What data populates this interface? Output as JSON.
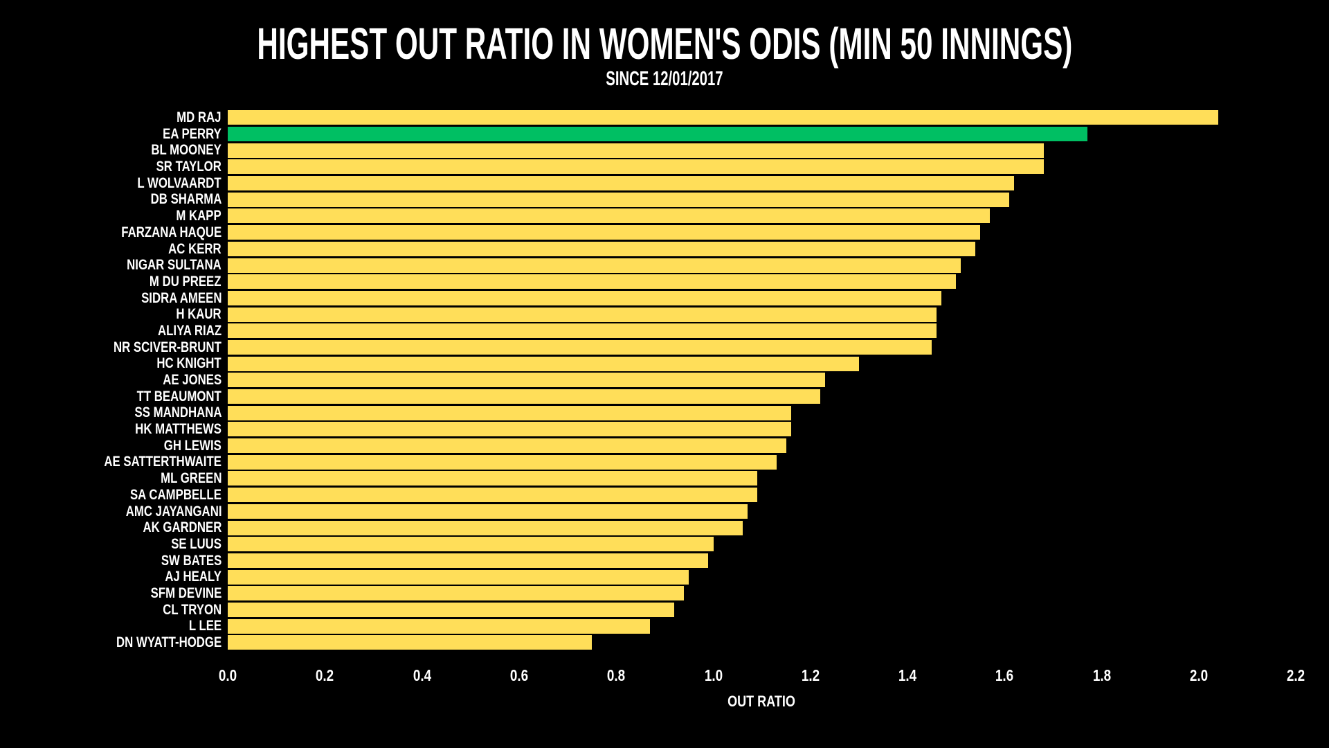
{
  "title": "HIGHEST OUT RATIO IN WOMEN'S ODIS (MIN 50 INNINGS)",
  "subtitle": "SINCE 12/01/2017",
  "colors": {
    "background": "#000000",
    "bar": "#FFDE59",
    "highlight_bar": "#00BF63",
    "text": "#FFFFFF"
  },
  "chart_data": {
    "type": "bar",
    "orientation": "horizontal",
    "title": "HIGHEST OUT RATIO IN WOMEN'S ODIS (MIN 50 INNINGS)",
    "subtitle": "SINCE 12/01/2017",
    "xlabel": "OUT RATIO",
    "ylabel": "",
    "xlim": [
      0.0,
      2.2
    ],
    "xticks": [
      0.0,
      0.2,
      0.4,
      0.6,
      0.8,
      1.0,
      1.2,
      1.4,
      1.6,
      1.8,
      2.0,
      2.2
    ],
    "grid": false,
    "legend": false,
    "categories": [
      "MD RAJ",
      "EA PERRY",
      "BL MOONEY",
      "SR TAYLOR",
      "L WOLVAARDT",
      "DB SHARMA",
      "M KAPP",
      "FARZANA HAQUE",
      "AC KERR",
      "NIGAR SULTANA",
      "M DU PREEZ",
      "SIDRA AMEEN",
      "H KAUR",
      "ALIYA RIAZ",
      "NR SCIVER-BRUNT",
      "HC KNIGHT",
      "AE JONES",
      "TT BEAUMONT",
      "SS MANDHANA",
      "HK MATTHEWS",
      "GH LEWIS",
      "AE SATTERTHWAITE",
      "ML GREEN",
      "SA CAMPBELLE",
      "AMC JAYANGANI",
      "AK GARDNER",
      "SE LUUS",
      "SW BATES",
      "AJ HEALY",
      "SFM DEVINE",
      "CL TRYON",
      "L LEE",
      "DN WYATT-HODGE"
    ],
    "values": [
      2.04,
      1.77,
      1.68,
      1.68,
      1.62,
      1.61,
      1.57,
      1.55,
      1.54,
      1.51,
      1.5,
      1.47,
      1.46,
      1.46,
      1.45,
      1.3,
      1.23,
      1.22,
      1.16,
      1.16,
      1.15,
      1.13,
      1.09,
      1.09,
      1.07,
      1.06,
      1.0,
      0.99,
      0.95,
      0.94,
      0.92,
      0.87,
      0.75
    ],
    "highlight_category": "EA PERRY"
  }
}
